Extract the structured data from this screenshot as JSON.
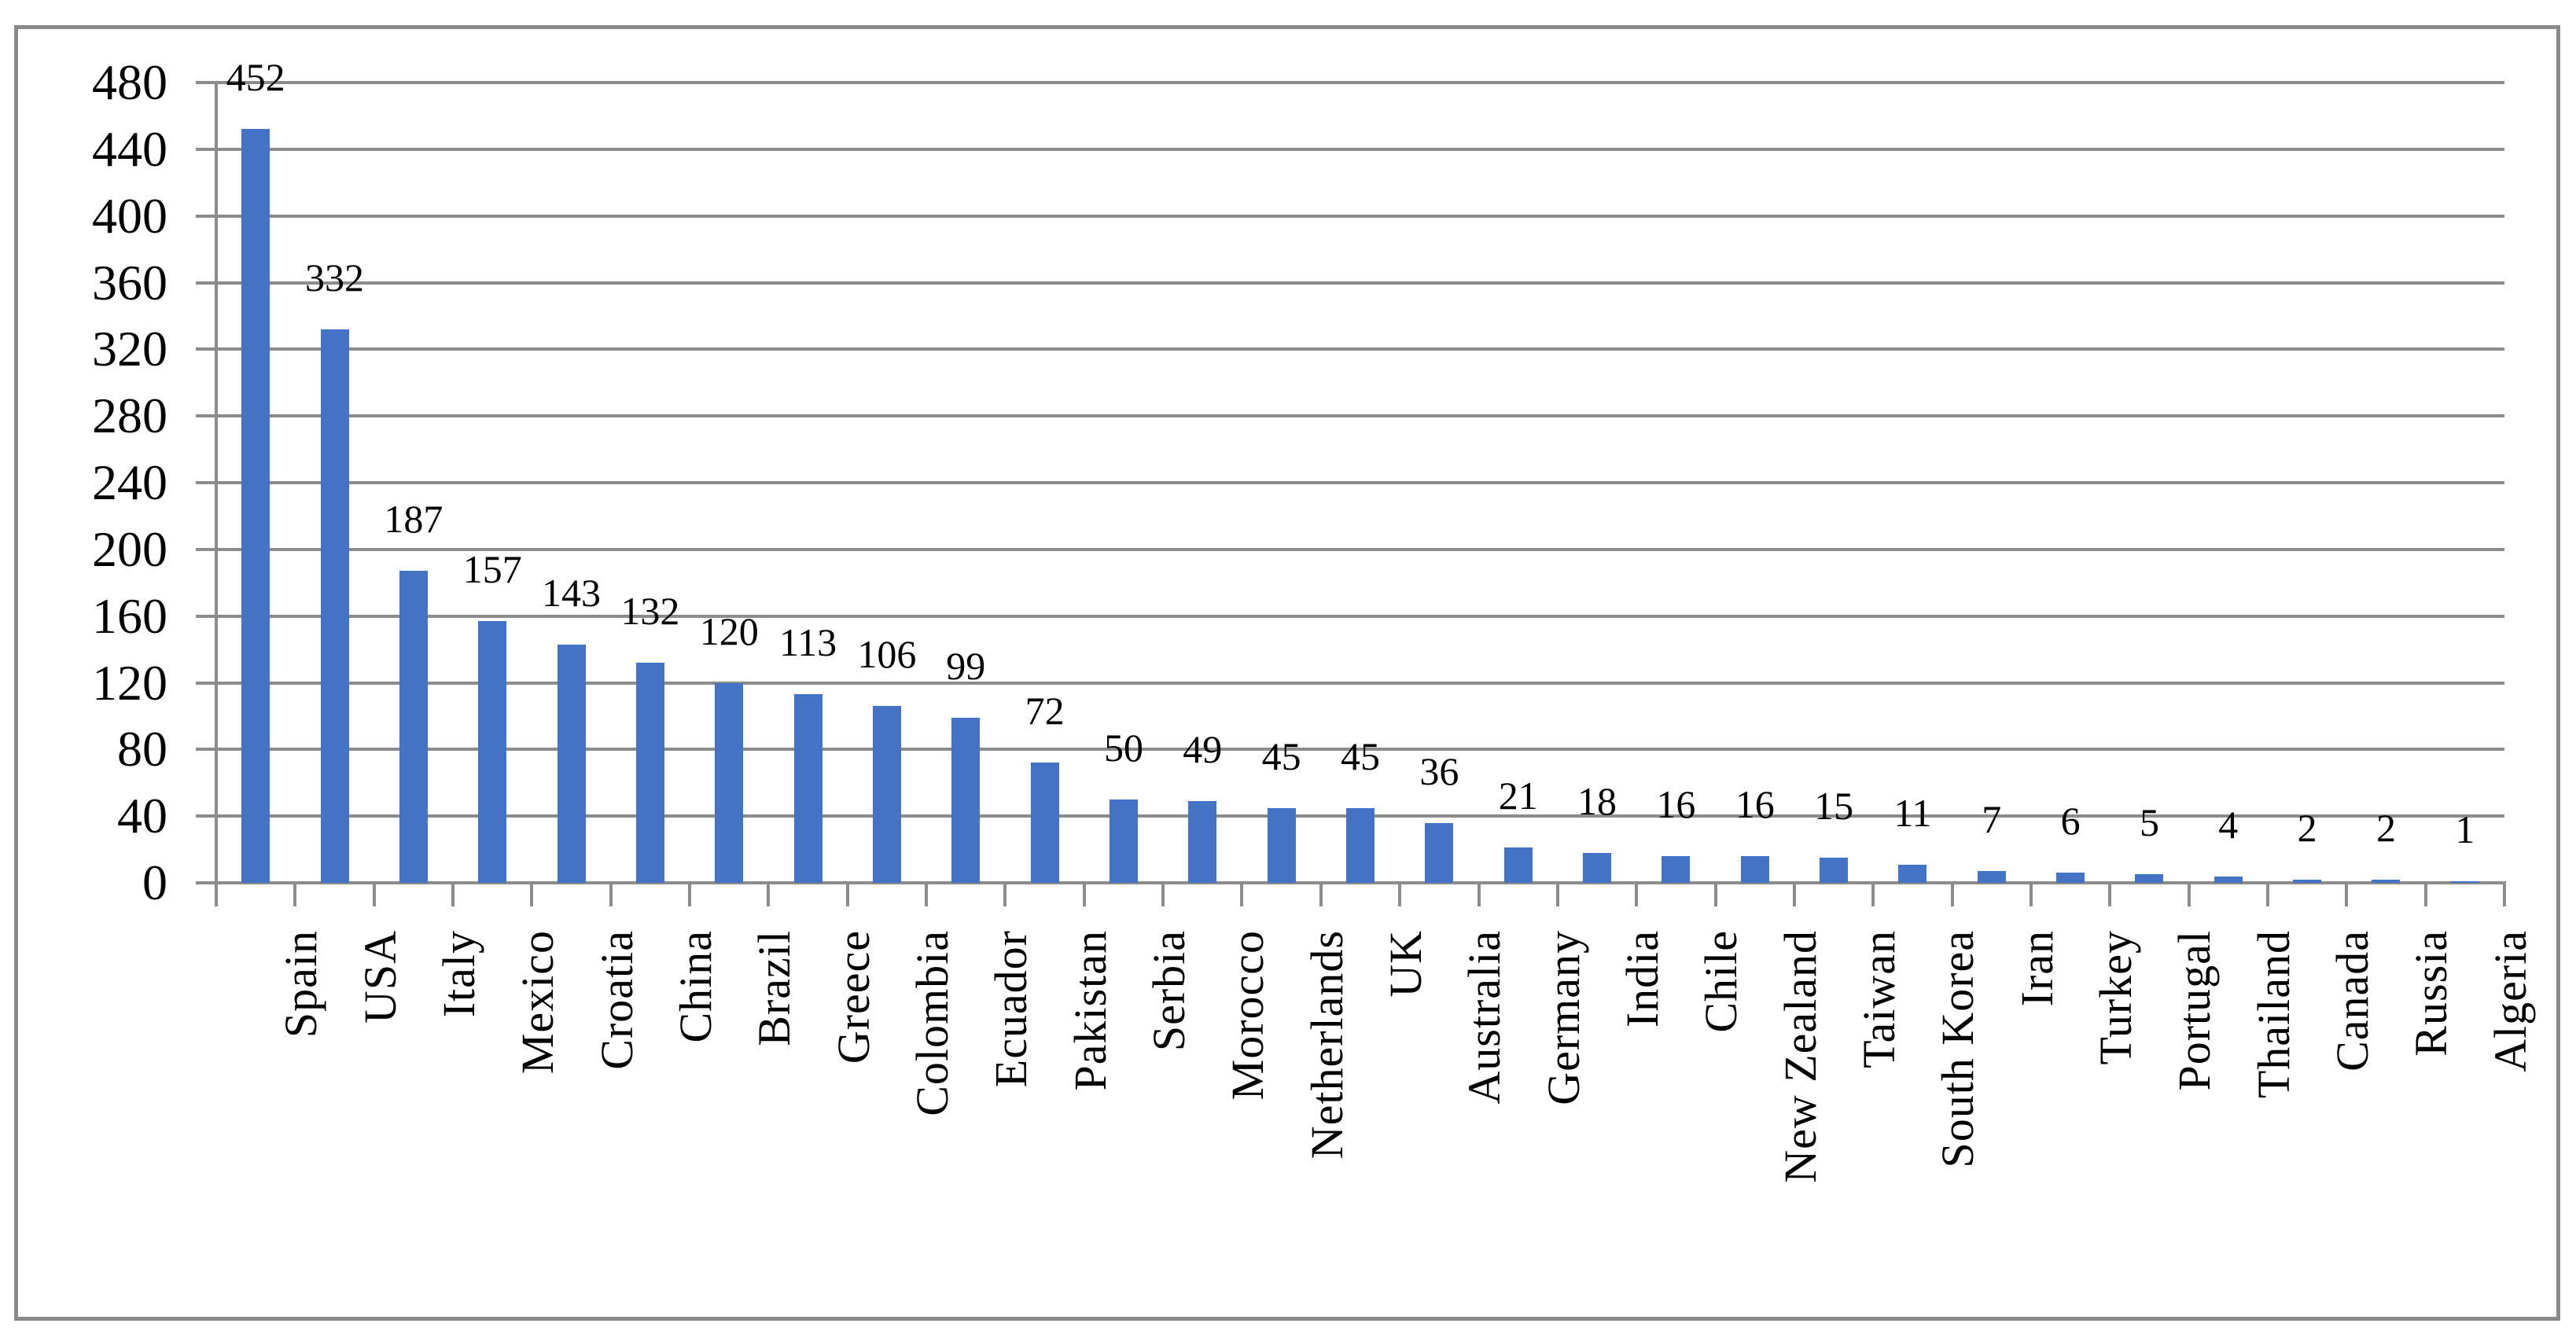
{
  "chart_data": {
    "type": "bar",
    "title": "",
    "xlabel": "",
    "ylabel": "",
    "categories": [
      "Spain",
      "USA",
      "Italy",
      "Mexico",
      "Croatia",
      "China",
      "Brazil",
      "Greece",
      "Colombia",
      "Ecuador",
      "Pakistan",
      "Serbia",
      "Morocco",
      "Netherlands",
      "UK",
      "Australia",
      "Germany",
      "India",
      "Chile",
      "New Zealand",
      "Taiwan",
      "South Korea",
      "Iran",
      "Turkey",
      "Portugal",
      "Thailand",
      "Canada",
      "Russia",
      "Algeria"
    ],
    "values": [
      452,
      332,
      187,
      157,
      143,
      132,
      120,
      113,
      106,
      99,
      72,
      50,
      49,
      45,
      45,
      36,
      21,
      18,
      16,
      16,
      15,
      11,
      7,
      6,
      5,
      4,
      2,
      2,
      1
    ],
    "data_labels": [
      "452",
      "332",
      "187",
      "157",
      "143",
      "132",
      "120",
      "113",
      "106",
      "99",
      "72",
      "50",
      "49",
      "45",
      "45",
      "36",
      "21",
      "18",
      "16",
      "16",
      "15",
      "11",
      "7",
      "6",
      "5",
      "4",
      "2",
      "2",
      "1"
    ],
    "ylim": [
      0,
      480
    ],
    "yticks": [
      0,
      40,
      80,
      120,
      160,
      200,
      240,
      280,
      320,
      360,
      400,
      440,
      480
    ],
    "grid": true,
    "legend": false,
    "bar_color": "#4472c4",
    "gridline_color": "#8c8c8c",
    "axis_color": "#8c8c8c",
    "text_color": "#000000",
    "frame_border_color": "#8a8a8a",
    "background_color": "#ffffff"
  }
}
